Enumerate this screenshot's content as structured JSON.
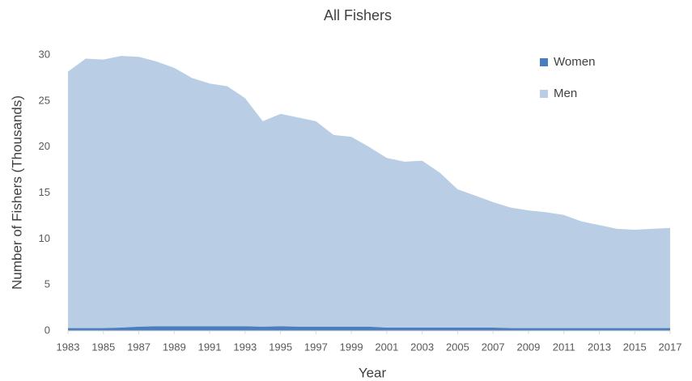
{
  "chart_data": {
    "type": "stacked_area",
    "title": "All Fishers",
    "x_label": "Year",
    "y_label": "Number of Fishers (Thousands)",
    "x": [
      1983,
      1984,
      1985,
      1986,
      1987,
      1988,
      1989,
      1990,
      1991,
      1992,
      1993,
      1994,
      1995,
      1996,
      1997,
      1998,
      1999,
      2000,
      2001,
      2002,
      2003,
      2004,
      2005,
      2006,
      2007,
      2008,
      2009,
      2010,
      2011,
      2012,
      2013,
      2014,
      2015,
      2016,
      2017
    ],
    "series": [
      {
        "name": "Women",
        "color": "#4a7ebf",
        "values": [
          0.3,
          0.3,
          0.3,
          0.35,
          0.45,
          0.5,
          0.5,
          0.5,
          0.5,
          0.5,
          0.5,
          0.45,
          0.5,
          0.45,
          0.45,
          0.45,
          0.45,
          0.45,
          0.35,
          0.35,
          0.35,
          0.35,
          0.35,
          0.35,
          0.35,
          0.3,
          0.3,
          0.3,
          0.3,
          0.3,
          0.3,
          0.3,
          0.3,
          0.3,
          0.3
        ]
      },
      {
        "name": "Men",
        "color": "#b9cde5",
        "values": [
          27.9,
          29.3,
          29.2,
          29.55,
          29.35,
          28.8,
          28.1,
          27.0,
          26.4,
          26.1,
          24.8,
          22.35,
          23.1,
          22.75,
          22.35,
          20.85,
          20.65,
          19.55,
          18.45,
          18.05,
          18.15,
          16.85,
          15.05,
          14.35,
          13.65,
          13.1,
          12.8,
          12.6,
          12.3,
          11.6,
          11.2,
          10.8,
          10.7,
          10.8,
          10.9
        ]
      }
    ],
    "xlim": [
      1983,
      2017
    ],
    "xticks": [
      1983,
      1985,
      1987,
      1989,
      1991,
      1993,
      1995,
      1997,
      1999,
      2001,
      2003,
      2005,
      2007,
      2009,
      2011,
      2013,
      2015,
      2017
    ],
    "ylim": [
      0,
      30
    ],
    "yticks": [
      0,
      5,
      10,
      15,
      20,
      25,
      30
    ],
    "grid": false,
    "legend": "top-right"
  }
}
